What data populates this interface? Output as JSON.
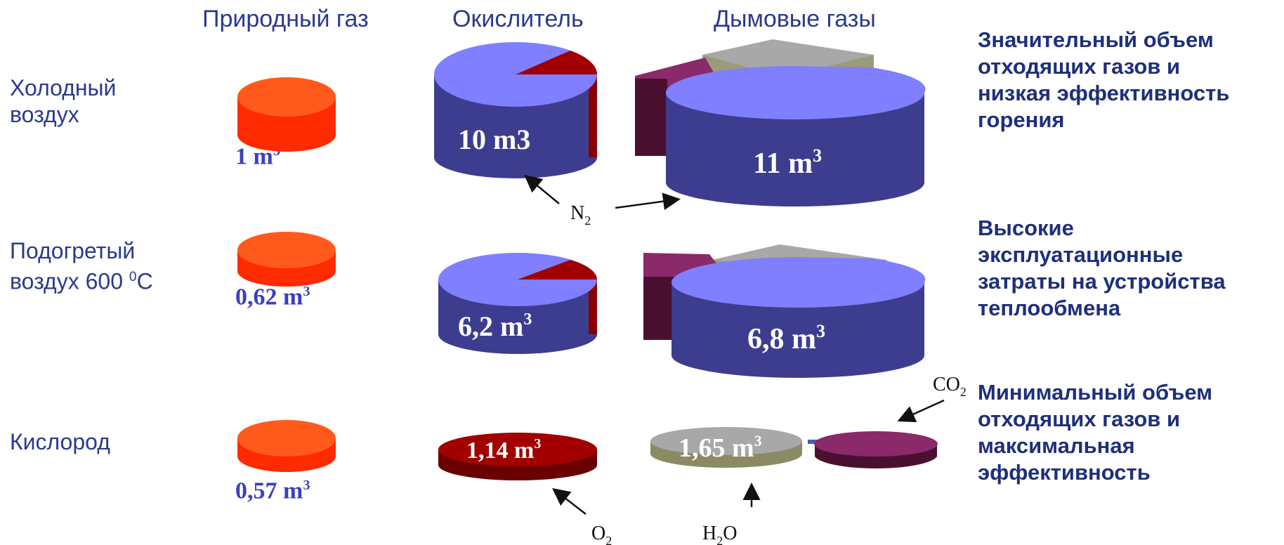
{
  "columns": {
    "natural_gas": "Природный газ",
    "oxidizer": "Окислитель",
    "flue_gas": "Дымовые газы"
  },
  "rows": [
    {
      "label_line1": "Холодный",
      "label_line2": "воздух",
      "gas_volume": "1 m",
      "gas_volume_sup": "3",
      "oxidizer_volume": "10 m3",
      "flue_volume": "11 m",
      "flue_volume_sup": "3",
      "note": [
        "Значительный объем",
        "отходящих газов и",
        "низкая эффективность",
        "горения"
      ]
    },
    {
      "label_line1": "Подогретый",
      "label_line2": "воздух 600 ",
      "label_sup": "0",
      "label_tail": "C",
      "gas_volume": "0,62 m",
      "gas_volume_sup": "3",
      "oxidizer_volume": "6,2 m",
      "oxidizer_volume_sup": "3",
      "flue_volume": "6,8 m",
      "flue_volume_sup": "3",
      "note": [
        "Высокие",
        "эксплуатационные",
        "затраты на устройства",
        "теплообмена"
      ]
    },
    {
      "label_line1": "Кислород",
      "gas_volume": "0,57 m",
      "gas_volume_sup": "3",
      "oxidizer_volume": "1,14 m",
      "oxidizer_volume_sup": "3",
      "flue_volume": "1,65 m",
      "flue_volume_sup": "3",
      "note": [
        "Минимальный объем",
        "отходящих газов и",
        "максимальная",
        "эффективность"
      ]
    }
  ],
  "gas_labels": {
    "n2": "N",
    "n2_sub": "2",
    "o2": "O",
    "o2_sub": "2",
    "h2o_h": "H",
    "h2o_sub": "2",
    "h2o_o": "O",
    "co2": "CO",
    "co2_sub": "2"
  },
  "colors": {
    "natural_gas": "#ff3d0f",
    "nitrogen": "#7f7fff",
    "oxygen": "#a20000",
    "water": "#9b9b9b",
    "co2": "#8a2a6a",
    "text_blue": "#2a3a8c"
  }
}
